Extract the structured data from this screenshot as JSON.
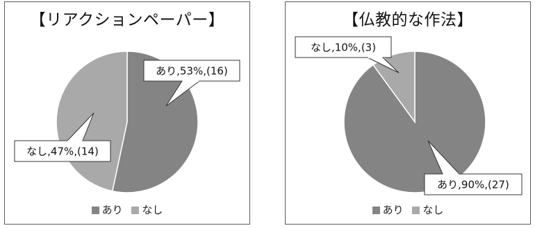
{
  "chart_data": [
    {
      "type": "pie",
      "title": "【リアクションペーパー】",
      "categories": [
        "あり",
        "なし"
      ],
      "values": [
        16,
        14
      ],
      "percents": [
        53,
        47
      ],
      "data_labels": [
        "あり,53%,(16)",
        "なし,47%,(14)"
      ],
      "legend": [
        "あり",
        "なし"
      ],
      "legend_position": "bottom",
      "colors": [
        "#848484",
        "#a9a9a9"
      ]
    },
    {
      "type": "pie",
      "title": "【仏教的な作法】",
      "categories": [
        "あり",
        "なし"
      ],
      "values": [
        27,
        3
      ],
      "percents": [
        90,
        10
      ],
      "data_labels": [
        "あり,90%,(27)",
        "なし,10%,(3)"
      ],
      "legend": [
        "あり",
        "なし"
      ],
      "legend_position": "bottom",
      "colors": [
        "#848484",
        "#a9a9a9"
      ]
    }
  ]
}
